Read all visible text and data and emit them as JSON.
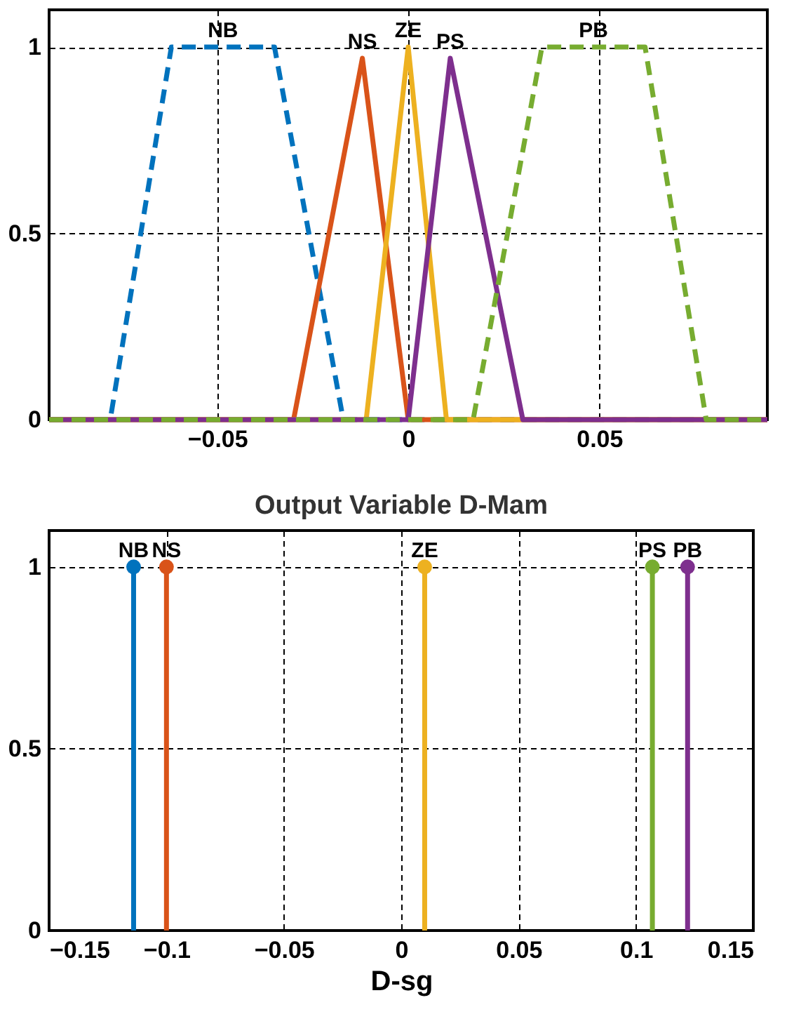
{
  "chart_data": [
    {
      "type": "line",
      "xlim": [
        -0.094,
        0.094
      ],
      "ylim": [
        0,
        1.1
      ],
      "xticks": [
        -0.05,
        0,
        0.05
      ],
      "yticks": [
        0,
        0.5,
        1
      ],
      "grid": true,
      "legend": false,
      "series": [
        {
          "name": "NB",
          "color": "#0072bd",
          "line_style": "dashed",
          "x": [
            -0.094,
            -0.078,
            -0.062,
            -0.035,
            -0.017,
            0.094
          ],
          "values": [
            0,
            0,
            1,
            1,
            0,
            0
          ]
        },
        {
          "name": "NS",
          "color": "#d95319",
          "line_style": "solid",
          "x": [
            -0.094,
            -0.03,
            -0.012,
            0,
            0.094
          ],
          "values": [
            0,
            0,
            0.97,
            0,
            0
          ]
        },
        {
          "name": "ZE",
          "color": "#edb120",
          "line_style": "solid",
          "x": [
            -0.094,
            -0.011,
            0,
            0.01,
            0.094
          ],
          "values": [
            0,
            0,
            1,
            0,
            0
          ]
        },
        {
          "name": "PS",
          "color": "#7e2f8e",
          "line_style": "solid",
          "x": [
            -0.094,
            0,
            0.011,
            0.03,
            0.094
          ],
          "values": [
            0,
            0,
            0.97,
            0,
            0
          ]
        },
        {
          "name": "PB",
          "color": "#77ac30",
          "line_style": "dashed",
          "x": [
            -0.094,
            0.017,
            0.035,
            0.062,
            0.078,
            0.094
          ],
          "values": [
            0,
            0,
            1,
            1,
            0,
            0
          ]
        }
      ]
    },
    {
      "type": "lollipop",
      "title": "Output Variable D-Mam",
      "xlabel": "D-sg",
      "xlim": [
        -0.15,
        0.15
      ],
      "ylim": [
        0,
        1.1
      ],
      "xticks": [
        -0.15,
        -0.1,
        -0.05,
        0,
        0.05,
        0.1,
        0.15
      ],
      "yticks": [
        0,
        0.5,
        1
      ],
      "grid": true,
      "legend": false,
      "marker": "circle",
      "series": [
        {
          "name": "NB",
          "color": "#0072bd",
          "x": [
            -0.114
          ],
          "values": [
            1
          ]
        },
        {
          "name": "NS",
          "color": "#d95319",
          "x": [
            -0.1
          ],
          "values": [
            1
          ]
        },
        {
          "name": "ZE",
          "color": "#edb120",
          "x": [
            0.01
          ],
          "values": [
            1
          ]
        },
        {
          "name": "PS",
          "color": "#77ac30",
          "x": [
            0.107
          ],
          "values": [
            1
          ]
        },
        {
          "name": "PB",
          "color": "#7e2f8e",
          "x": [
            0.122
          ],
          "values": [
            1
          ]
        }
      ]
    }
  ]
}
